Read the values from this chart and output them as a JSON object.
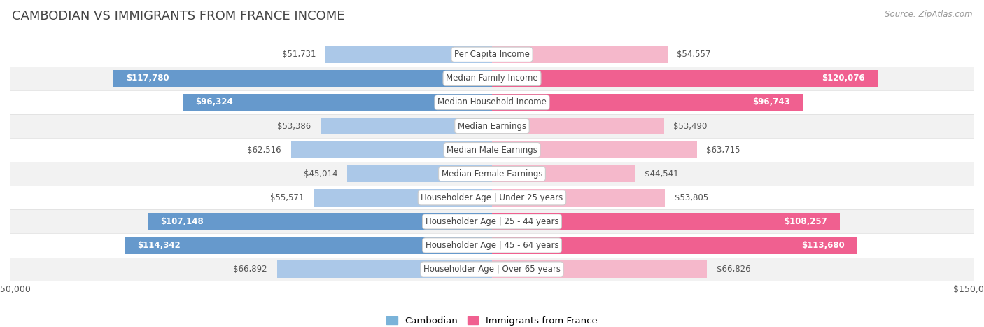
{
  "title": "CAMBODIAN VS IMMIGRANTS FROM FRANCE INCOME",
  "source": "Source: ZipAtlas.com",
  "categories": [
    "Per Capita Income",
    "Median Family Income",
    "Median Household Income",
    "Median Earnings",
    "Median Male Earnings",
    "Median Female Earnings",
    "Householder Age | Under 25 years",
    "Householder Age | 25 - 44 years",
    "Householder Age | 45 - 64 years",
    "Householder Age | Over 65 years"
  ],
  "cambodian_values": [
    51731,
    117780,
    96324,
    53386,
    62516,
    45014,
    55571,
    107148,
    114342,
    66892
  ],
  "france_values": [
    54557,
    120076,
    96743,
    53490,
    63715,
    44541,
    53805,
    108257,
    113680,
    66826
  ],
  "cambodian_labels": [
    "$51,731",
    "$117,780",
    "$96,324",
    "$53,386",
    "$62,516",
    "$45,014",
    "$55,571",
    "$107,148",
    "$114,342",
    "$66,892"
  ],
  "france_labels": [
    "$54,557",
    "$120,076",
    "$96,743",
    "$53,490",
    "$63,715",
    "$44,541",
    "$53,805",
    "$108,257",
    "$113,680",
    "$66,826"
  ],
  "max_value": 150000,
  "cambodian_color_light": "#abc8e8",
  "cambodian_color_dark": "#6699cc",
  "france_color_light": "#f5b8cb",
  "france_color_dark": "#f06090",
  "row_bg_light": "#f2f2f2",
  "row_bg_white": "#ffffff",
  "bar_height": 0.72,
  "legend_cambodian_color": "#7ab3d9",
  "legend_france_color": "#f06090",
  "title_fontsize": 13,
  "label_fontsize": 8.5,
  "cat_fontsize": 8.5,
  "source_fontsize": 8.5,
  "axis_fontsize": 9
}
